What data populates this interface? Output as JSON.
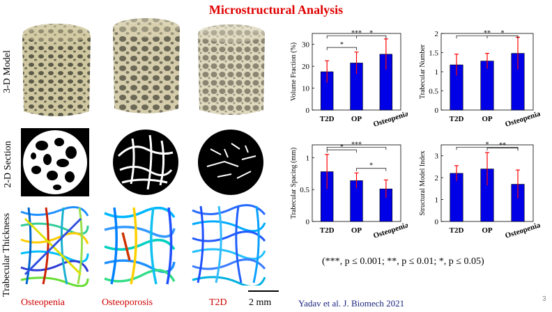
{
  "title": "Microstructural Analysis",
  "row_labels": [
    "3-D Model",
    "2-D Section",
    "Trabecular Thickness"
  ],
  "column_captions": [
    "Osteopenia",
    "Osteoporosis",
    "T2D"
  ],
  "scale_bar_label": "2 mm",
  "citation": "Yadav et al. J. Biomech 2021",
  "page_number": "3",
  "significance_note": "(***, p ≤ 0.001; **, p ≤ 0.01; *, p ≤ 0.05)",
  "colors": {
    "title": "#e00000",
    "bar": "#0000e6",
    "error": "#ff0000",
    "caption": "#d00000",
    "citation": "#1a237e"
  },
  "chart_data": [
    {
      "type": "bar",
      "ylabel": "Volume Fraction (%)",
      "categories": [
        "T2D",
        "OP",
        "Osteopenia"
      ],
      "values": [
        17.5,
        21.5,
        25.5
      ],
      "errors": [
        5,
        5,
        7
      ],
      "ylim": [
        0,
        35
      ],
      "yticks": [
        0,
        10,
        20,
        30
      ],
      "significance": [
        {
          "from": 0,
          "to": 2,
          "label": "***"
        },
        {
          "from": 0,
          "to": 1,
          "label": "*"
        },
        {
          "from": 1,
          "to": 2,
          "label": "*"
        }
      ]
    },
    {
      "type": "bar",
      "ylabel": "Trabecular Number",
      "categories": [
        "T2D",
        "OP",
        "Osteopenia"
      ],
      "values": [
        1.18,
        1.28,
        1.48
      ],
      "errors": [
        0.28,
        0.2,
        0.42
      ],
      "ylim": [
        0,
        2
      ],
      "yticks": [
        0,
        0.5,
        1,
        1.5,
        2
      ],
      "significance": [
        {
          "from": 0,
          "to": 2,
          "label": "**"
        },
        {
          "from": 1,
          "to": 2,
          "label": "*"
        }
      ]
    },
    {
      "type": "bar",
      "ylabel": "Trabecular Spacing (mm)",
      "categories": [
        "T2D",
        "OP",
        "Osteopenia"
      ],
      "values": [
        0.78,
        0.64,
        0.51
      ],
      "errors": [
        0.27,
        0.12,
        0.14
      ],
      "ylim": [
        0,
        1.2
      ],
      "yticks": [
        0,
        0.5,
        1
      ],
      "significance": [
        {
          "from": 0,
          "to": 2,
          "label": "***"
        },
        {
          "from": 0,
          "to": 1,
          "label": "*"
        },
        {
          "from": 1,
          "to": 2,
          "label": "*"
        }
      ]
    },
    {
      "type": "bar",
      "ylabel": "Structural Model Index",
      "categories": [
        "T2D",
        "OP",
        "Osteopenia"
      ],
      "values": [
        2.2,
        2.4,
        1.7
      ],
      "errors": [
        0.35,
        0.75,
        0.65
      ],
      "ylim": [
        0,
        3.5
      ],
      "yticks": [
        0,
        1,
        2,
        3
      ],
      "significance": [
        {
          "from": 0,
          "to": 2,
          "label": "*"
        },
        {
          "from": 1,
          "to": 2,
          "label": "**"
        }
      ]
    }
  ]
}
